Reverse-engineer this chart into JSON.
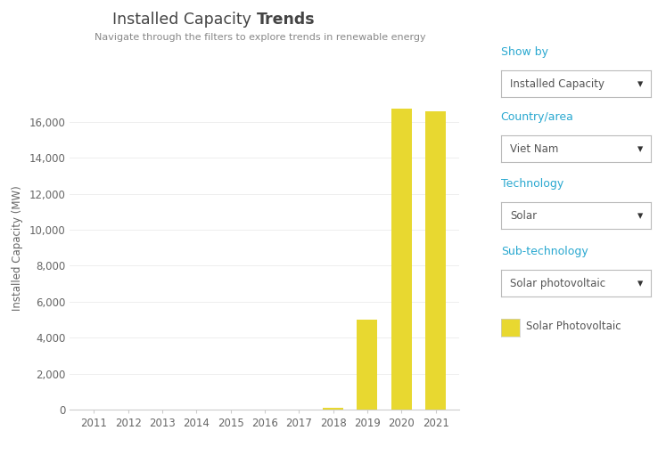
{
  "title_normal": "Installed Capacity ",
  "title_bold": "Trends",
  "subtitle": "Navigate through the filters to explore trends in renewable energy",
  "years": [
    2011,
    2012,
    2013,
    2014,
    2015,
    2016,
    2017,
    2018,
    2019,
    2020,
    2021
  ],
  "values": [
    0,
    0,
    0,
    0,
    0,
    0,
    0,
    86,
    5000,
    16700,
    16600
  ],
  "bar_color": "#E8D830",
  "ylabel": "Installed Capacity (MW)",
  "ylim": [
    0,
    18000
  ],
  "yticks": [
    0,
    2000,
    4000,
    6000,
    8000,
    10000,
    12000,
    14000,
    16000
  ],
  "background_color": "#ffffff",
  "legend_label": "Solar Photovoltaic",
  "sidebar_labels": [
    "Show by",
    "Country/area",
    "Technology",
    "Sub-technology"
  ],
  "sidebar_values": [
    "Installed Capacity",
    "Viet Nam",
    "Solar",
    "Solar photovoltaic"
  ],
  "sidebar_label_color": "#29a8d0",
  "sidebar_text_color": "#555555",
  "title_color": "#444444",
  "subtitle_color": "#888888",
  "axis_color": "#cccccc",
  "tick_color": "#666666",
  "grid_color": "#eeeeee",
  "box_border_color": "#bbbbbb"
}
